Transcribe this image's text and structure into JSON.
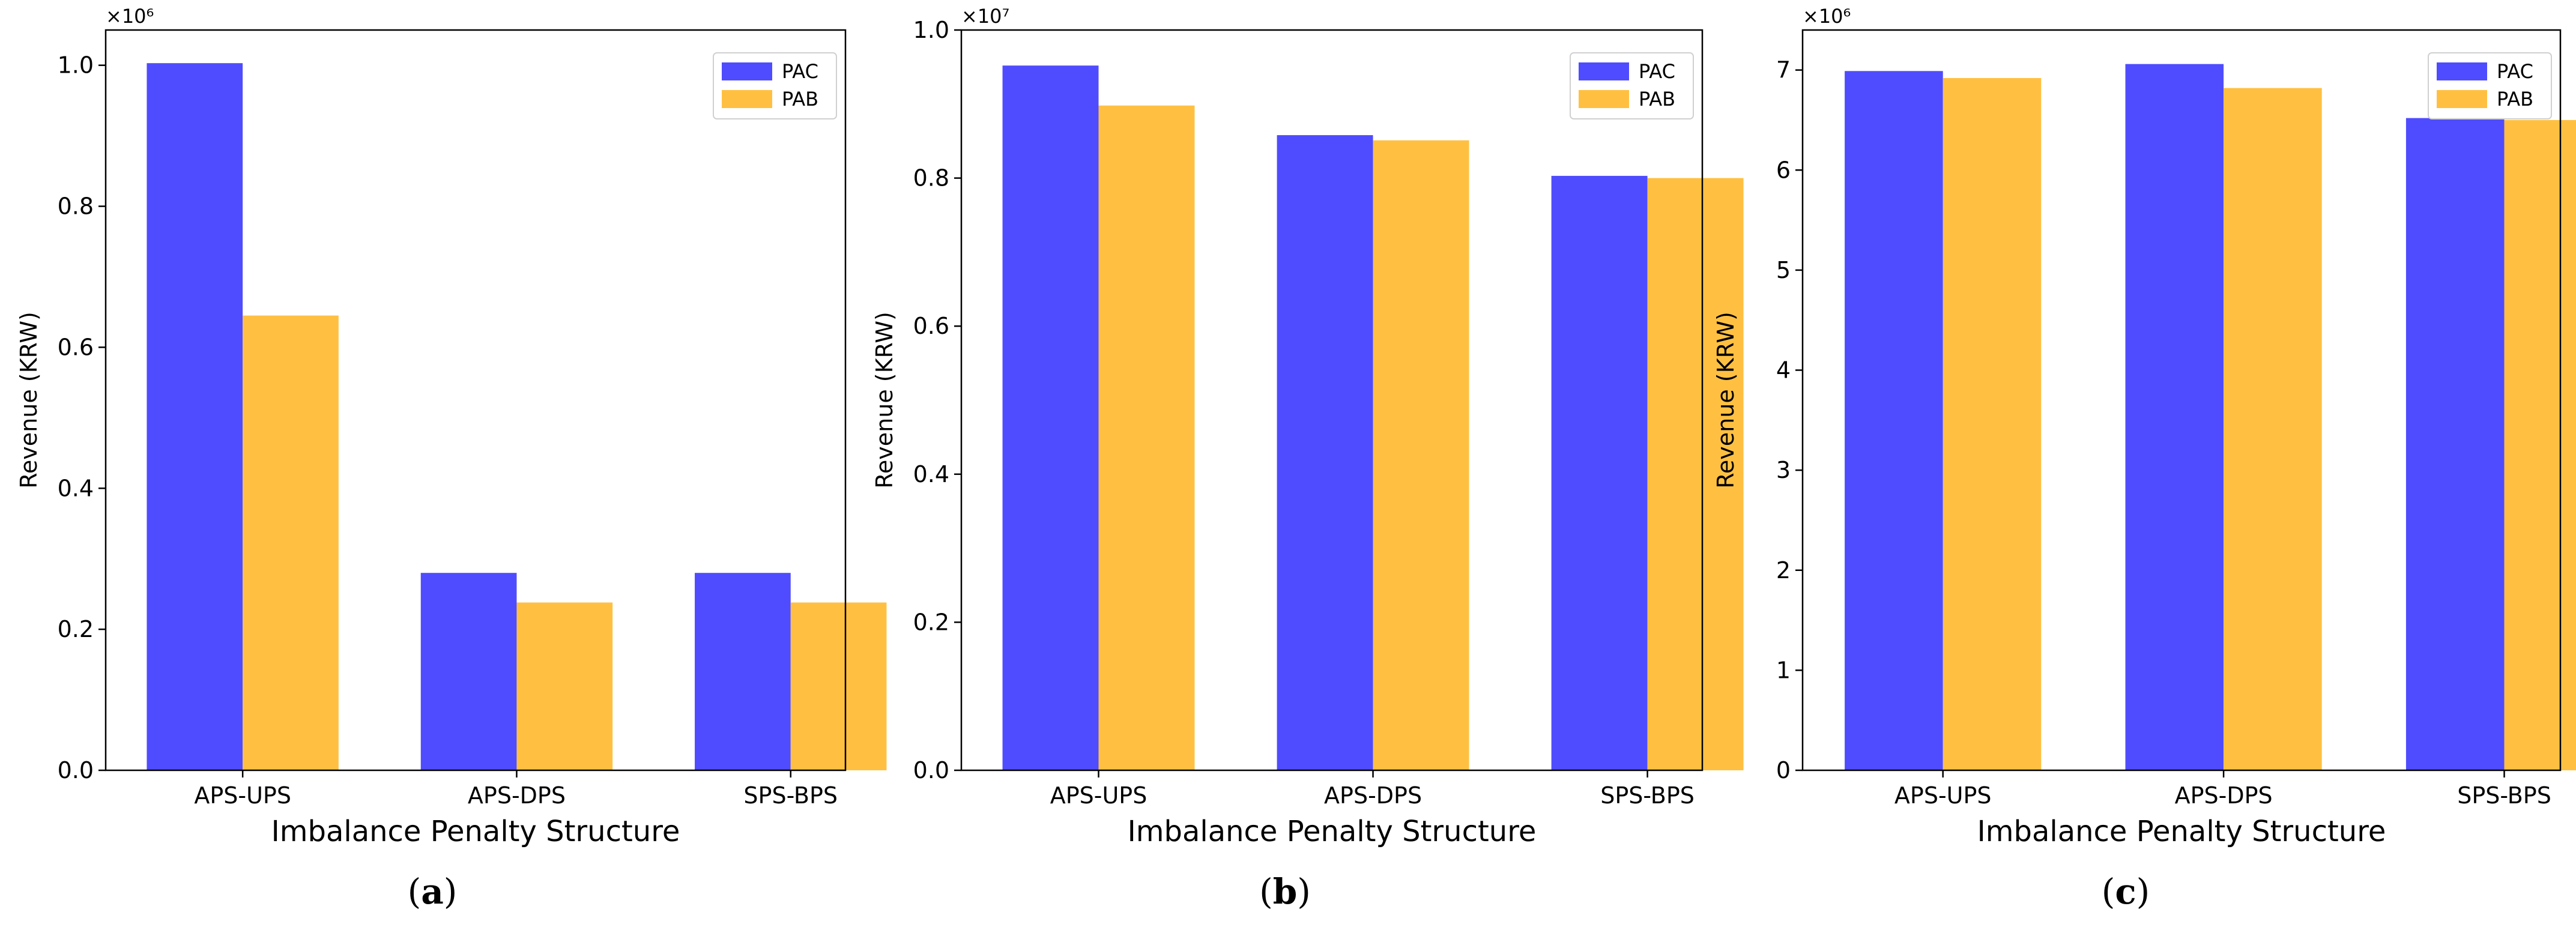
{
  "chart_data": [
    {
      "type": "bar",
      "caption_letter": "a",
      "categories": [
        "APS-UPS",
        "APS-DPS",
        "SPS-BPS"
      ],
      "series": [
        {
          "name": "PAC",
          "color": "#4F4CFF",
          "values": [
            1.003,
            0.28,
            0.28
          ]
        },
        {
          "name": "PAB",
          "color": "#FFC042",
          "values": [
            0.645,
            0.238,
            0.238
          ]
        }
      ],
      "xlabel": "Imbalance Penalty Structure",
      "ylabel": "Revenue (KRW)",
      "multiplier": "×10⁶",
      "ylim": [
        0,
        1.05
      ],
      "yticks": [
        0.0,
        0.2,
        0.4,
        0.6,
        0.8,
        1.0
      ],
      "ytick_labels": [
        "0.0",
        "0.2",
        "0.4",
        "0.6",
        "0.8",
        "1.0"
      ],
      "legend": "top-right"
    },
    {
      "type": "bar",
      "caption_letter": "b",
      "categories": [
        "APS-UPS",
        "APS-DPS",
        "SPS-BPS"
      ],
      "series": [
        {
          "name": "PAC",
          "color": "#4F4CFF",
          "values": [
            0.952,
            0.858,
            0.803
          ]
        },
        {
          "name": "PAB",
          "color": "#FFC042",
          "values": [
            0.898,
            0.851,
            0.8
          ]
        }
      ],
      "xlabel": "Imbalance Penalty Structure",
      "ylabel": "Revenue (KRW)",
      "multiplier": "×10⁷",
      "ylim": [
        0,
        1.0
      ],
      "yticks": [
        0.0,
        0.2,
        0.4,
        0.6,
        0.8,
        1.0
      ],
      "ytick_labels": [
        "0.0",
        "0.2",
        "0.4",
        "0.6",
        "0.8",
        "1.0"
      ],
      "legend": "top-right"
    },
    {
      "type": "bar",
      "caption_letter": "c",
      "categories": [
        "APS-UPS",
        "APS-DPS",
        "SPS-BPS"
      ],
      "series": [
        {
          "name": "PAC",
          "color": "#4F4CFF",
          "values": [
            6.99,
            7.06,
            6.52
          ]
        },
        {
          "name": "PAB",
          "color": "#FFC042",
          "values": [
            6.92,
            6.82,
            6.5
          ]
        }
      ],
      "xlabel": "Imbalance Penalty Structure",
      "ylabel": "Revenue (KRW)",
      "multiplier": "×10⁶",
      "ylim": [
        0,
        7.4
      ],
      "yticks": [
        0,
        1,
        2,
        3,
        4,
        5,
        6,
        7
      ],
      "ytick_labels": [
        "0",
        "1",
        "2",
        "3",
        "4",
        "5",
        "6",
        "7"
      ],
      "legend": "top-right"
    }
  ]
}
